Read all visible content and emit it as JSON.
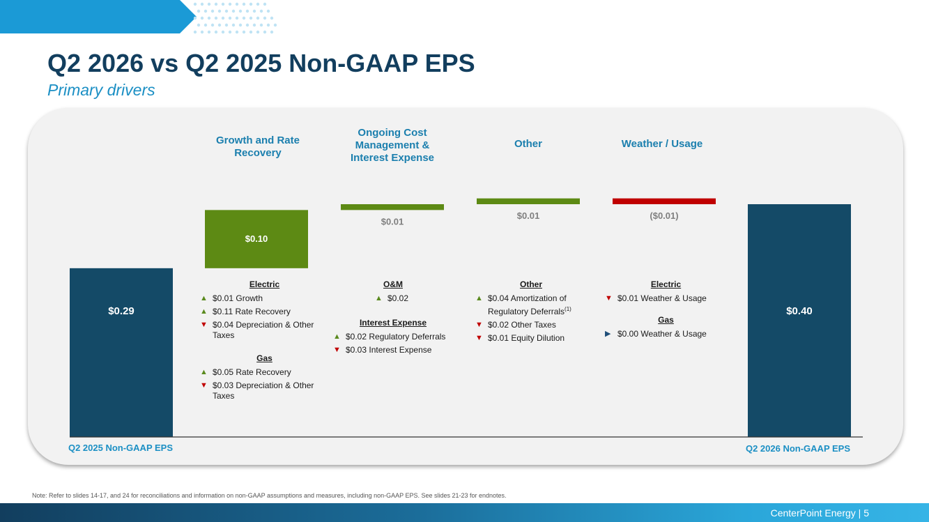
{
  "header": {
    "title": "Q2 2026 vs Q2 2025 Non-GAAP EPS",
    "subtitle": "Primary drivers"
  },
  "categories": [
    "Growth and Rate Recovery",
    "Ongoing Cost Management & Interest Expense",
    "Other",
    "Weather / Usage"
  ],
  "axis_labels": {
    "start": "Q2 2025 Non-GAAP EPS",
    "end": "Q2 2026 Non-GAAP EPS"
  },
  "chart_data": {
    "type": "bar",
    "subtype": "waterfall",
    "categories": [
      "Q2 2025 Non-GAAP EPS",
      "Growth and Rate Recovery",
      "Ongoing Cost Management & Interest Expense",
      "Other",
      "Weather / Usage",
      "Q2 2026 Non-GAAP EPS"
    ],
    "values": [
      0.29,
      0.1,
      0.01,
      0.01,
      -0.01,
      0.4
    ],
    "labels": [
      "$0.29",
      "$0.10",
      "$0.01",
      "$0.01",
      "($0.01)",
      "$0.40"
    ],
    "ylim": [
      0,
      0.42
    ],
    "colors": {
      "total": "#144a67",
      "increase": "#5d8a14",
      "decrease": "#c00000"
    }
  },
  "drivers": {
    "growth": {
      "electric_heading": "Electric",
      "electric_items": [
        {
          "dir": "up",
          "text": "$0.01 Growth"
        },
        {
          "dir": "up",
          "text": "$0.11 Rate Recovery"
        },
        {
          "dir": "down",
          "text": "$0.04 Depreciation & Other Taxes"
        }
      ],
      "gas_heading": "Gas",
      "gas_items": [
        {
          "dir": "up",
          "text": "$0.05 Rate Recovery"
        },
        {
          "dir": "down",
          "text": "$0.03 Depreciation & Other Taxes"
        }
      ]
    },
    "cost": {
      "om_heading": "O&M",
      "om_items": [
        {
          "dir": "up",
          "text": "$0.02"
        }
      ],
      "interest_heading": "Interest Expense",
      "interest_items": [
        {
          "dir": "up",
          "text": "$0.02 Regulatory Deferrals"
        },
        {
          "dir": "down",
          "text": "$0.03 Interest Expense"
        }
      ]
    },
    "other": {
      "heading": "Other",
      "item1_text": "$0.04 Amortization of Regulatory Deferrals",
      "item1_sup": "(1)",
      "items": [
        {
          "dir": "down",
          "text": "$0.02 Other Taxes"
        },
        {
          "dir": "down",
          "text": "$0.01 Equity Dilution"
        }
      ]
    },
    "weather": {
      "electric_heading": "Electric",
      "electric_items": [
        {
          "dir": "down",
          "text": "$0.01 Weather & Usage"
        }
      ],
      "gas_heading": "Gas",
      "gas_items": [
        {
          "dir": "flat",
          "text": "$0.00 Weather & Usage"
        }
      ]
    }
  },
  "arrows": {
    "up": "▲",
    "down": "▼",
    "flat": "▶"
  },
  "footer": {
    "note": "Note: Refer to slides 14-17, and 24 for reconciliations and information on non-GAAP assumptions and measures, including non-GAAP EPS. See slides 21-23 for endnotes.",
    "company_page": "CenterPoint Energy | 5"
  }
}
